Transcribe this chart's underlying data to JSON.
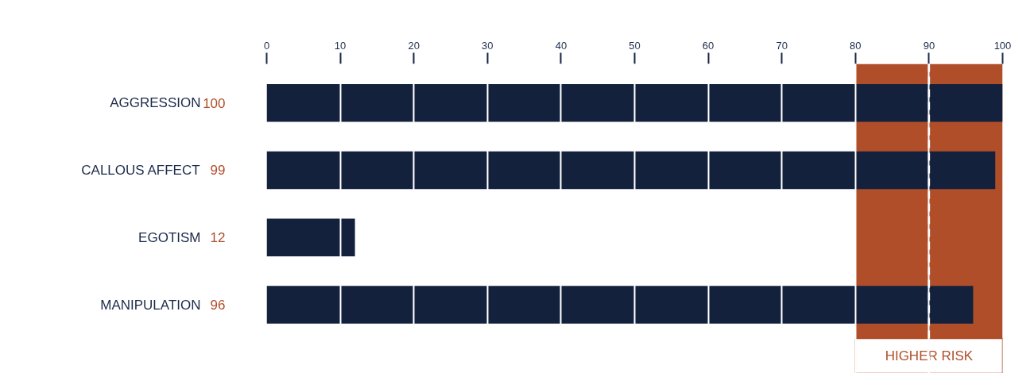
{
  "chart_data": {
    "type": "bar",
    "orientation": "horizontal",
    "categories": [
      "AGGRESSION",
      "CALLOUS AFFECT",
      "EGOTISM",
      "MANIPULATION"
    ],
    "values": [
      100,
      99,
      12,
      96
    ],
    "color": "#14213d",
    "data_labels": true,
    "xlim": [
      0,
      100
    ],
    "xticks": [
      0,
      10,
      20,
      30,
      40,
      50,
      60,
      70,
      80,
      90,
      100
    ],
    "grid": "x",
    "bands": [
      {
        "axis": "x",
        "from": 80,
        "to": 100,
        "label": "HIGHER RISK",
        "color": "#b04e2a"
      }
    ],
    "ref_lines": [
      {
        "axis": "x",
        "value": 90,
        "color": "#ffffff",
        "line_style": "dashed"
      }
    ]
  }
}
